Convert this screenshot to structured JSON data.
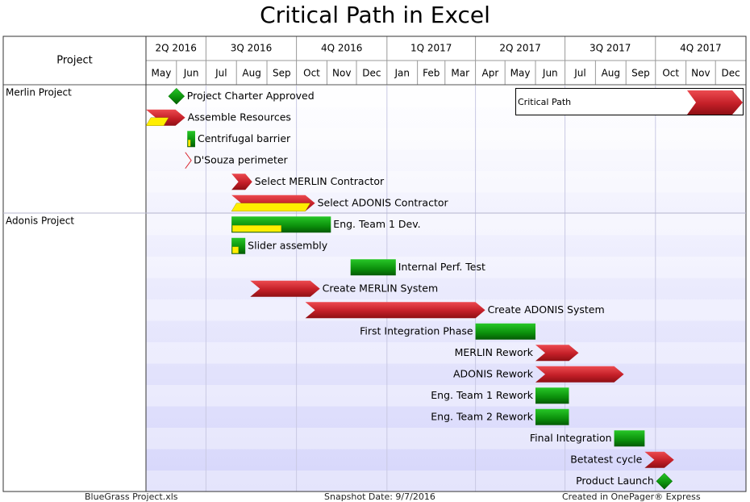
{
  "title": "Critical Path in Excel",
  "footer": {
    "source": "BlueGrass Project.xls",
    "snapshot": "Snapshot Date: 9/7/2016",
    "created": "Created in OnePager® Express"
  },
  "legend": {
    "label": "Critical Path",
    "color": "#c8202a"
  },
  "colors": {
    "critical": "#c8202a",
    "noncritical": "#129112",
    "progress": "#ffee00",
    "milestone": "#0a8a0a"
  },
  "chart_data": {
    "type": "gantt",
    "project_column_header": "Project",
    "quarters": [
      "2Q 2016",
      "3Q 2016",
      "4Q 2016",
      "1Q 2017",
      "2Q 2017",
      "3Q 2017",
      "4Q 2017"
    ],
    "months": [
      "May",
      "Jun",
      "Jul",
      "Aug",
      "Sep",
      "Oct",
      "Nov",
      "Dec",
      "Jan",
      "Feb",
      "Mar",
      "Apr",
      "May",
      "Jun",
      "Jul",
      "Aug",
      "Sep",
      "Oct",
      "Nov",
      "Dec"
    ],
    "x_range": [
      "2016-05-01",
      "2017-12-31"
    ],
    "groups": [
      {
        "name": "Merlin Project",
        "rows": 6
      },
      {
        "name": "Adonis Project",
        "rows": 13
      }
    ],
    "tasks": [
      {
        "row": 0,
        "label": "Project Charter Approved",
        "type": "milestone",
        "start": "2016-06-01"
      },
      {
        "row": 1,
        "label": "Assemble Resources",
        "type": "critical",
        "start": "2016-05-01",
        "end": "2016-05-31",
        "progress": 0.6
      },
      {
        "row": 2,
        "label": "Centrifugal barrier",
        "type": "task",
        "start": "2016-06-12",
        "end": "2016-06-20",
        "progress": 0.4
      },
      {
        "row": 3,
        "label": "D'Souza perimeter",
        "type": "critical-outline",
        "start": "2016-06-10",
        "end": "2016-06-22"
      },
      {
        "row": 4,
        "label": "Select MERLIN Contractor",
        "type": "critical",
        "start": "2016-07-27",
        "end": "2016-08-10"
      },
      {
        "row": 5,
        "label": "Select ADONIS Contractor",
        "type": "critical",
        "start": "2016-07-27",
        "end": "2016-10-10",
        "progress": 1.0
      },
      {
        "row": 6,
        "label": "Eng. Team 1 Dev.",
        "type": "task",
        "start": "2016-07-27",
        "end": "2016-11-05",
        "progress": 0.5
      },
      {
        "row": 7,
        "label": "Slider assembly",
        "type": "task",
        "start": "2016-07-27",
        "end": "2016-08-10",
        "progress": 0.5
      },
      {
        "row": 8,
        "label": "Internal Perf. Test",
        "type": "task",
        "start": "2016-11-25",
        "end": "2017-01-10"
      },
      {
        "row": 9,
        "label": "Create MERLIN System",
        "type": "critical",
        "start": "2016-08-15",
        "end": "2016-10-15"
      },
      {
        "row": 10,
        "label": "Create ADONIS System",
        "type": "critical",
        "start": "2016-10-10",
        "end": "2017-04-01"
      },
      {
        "row": 11,
        "label": "First Integration Phase",
        "type": "task",
        "start": "2017-04-01",
        "end": "2017-06-01"
      },
      {
        "row": 12,
        "label": "MERLIN Rework",
        "type": "critical",
        "start": "2017-06-01",
        "end": "2017-07-05"
      },
      {
        "row": 13,
        "label": "ADONIS Rework",
        "type": "critical",
        "start": "2017-06-01",
        "end": "2017-08-20"
      },
      {
        "row": 14,
        "label": "Eng. Team 1 Rework",
        "type": "task",
        "start": "2017-06-01",
        "end": "2017-07-05"
      },
      {
        "row": 15,
        "label": "Eng. Team 2 Rework",
        "type": "task",
        "start": "2017-06-01",
        "end": "2017-07-05"
      },
      {
        "row": 16,
        "label": "Final Integration",
        "type": "task",
        "start": "2017-08-20",
        "end": "2017-09-20"
      },
      {
        "row": 17,
        "label": "Betatest cycle",
        "type": "critical",
        "start": "2017-09-20",
        "end": "2017-10-10"
      },
      {
        "row": 18,
        "label": "Product Launch",
        "type": "milestone",
        "start": "2017-10-10"
      }
    ]
  }
}
